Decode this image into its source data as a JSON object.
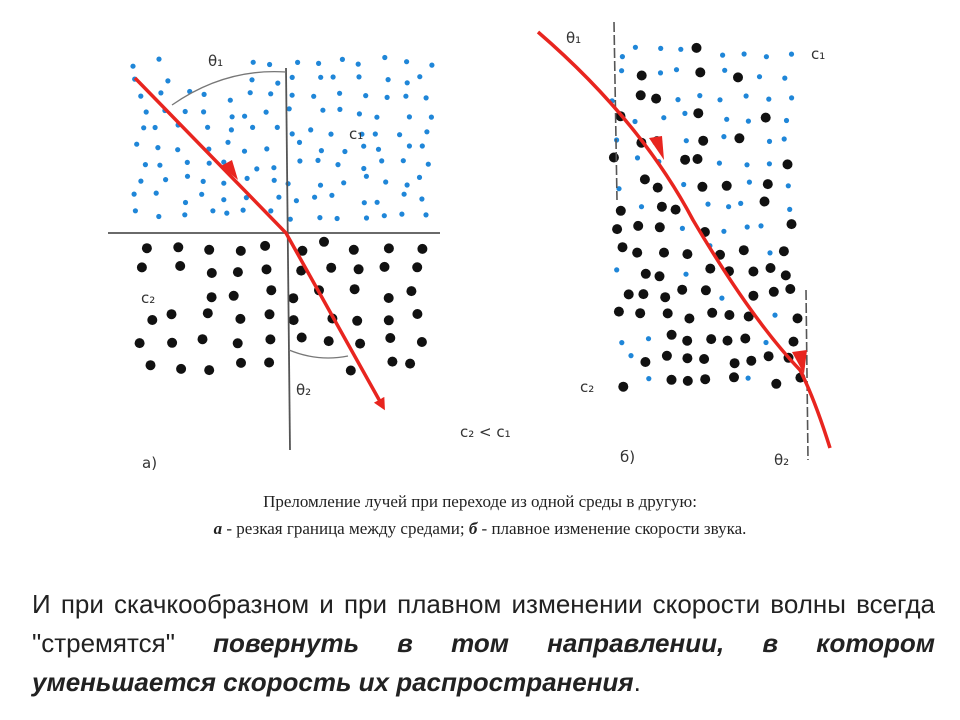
{
  "diagram": {
    "accent_ray": "#e8251f",
    "dot_blue": "#1f86d8",
    "dot_black": "#111111",
    "line_gray": "#555555",
    "panel_a": {
      "label": "а)",
      "theta1": "θ₁",
      "theta2": "θ₂",
      "c1": "c₁",
      "c2": "c₂"
    },
    "panel_b": {
      "label": "б)",
      "theta1": "θ₁",
      "theta2": "θ₂",
      "c1": "c₁",
      "c2": "c₂"
    },
    "relation": "c₂ < c₁"
  },
  "caption": {
    "line1": "Преломление лучей при переходе из одной среды в другую:",
    "a_letter": "а",
    "a_text": " - резкая граница между средами; ",
    "b_letter": "б",
    "b_text": " - плавное изменение скорости звука."
  },
  "body_text": {
    "normal": "И при скачкообразном и при плавном изменении скорости волны всегда \"стремятся\" ",
    "emphasis": "повернуть в том направлении, в котором уменьшается скорость их распространения",
    "end": "."
  }
}
